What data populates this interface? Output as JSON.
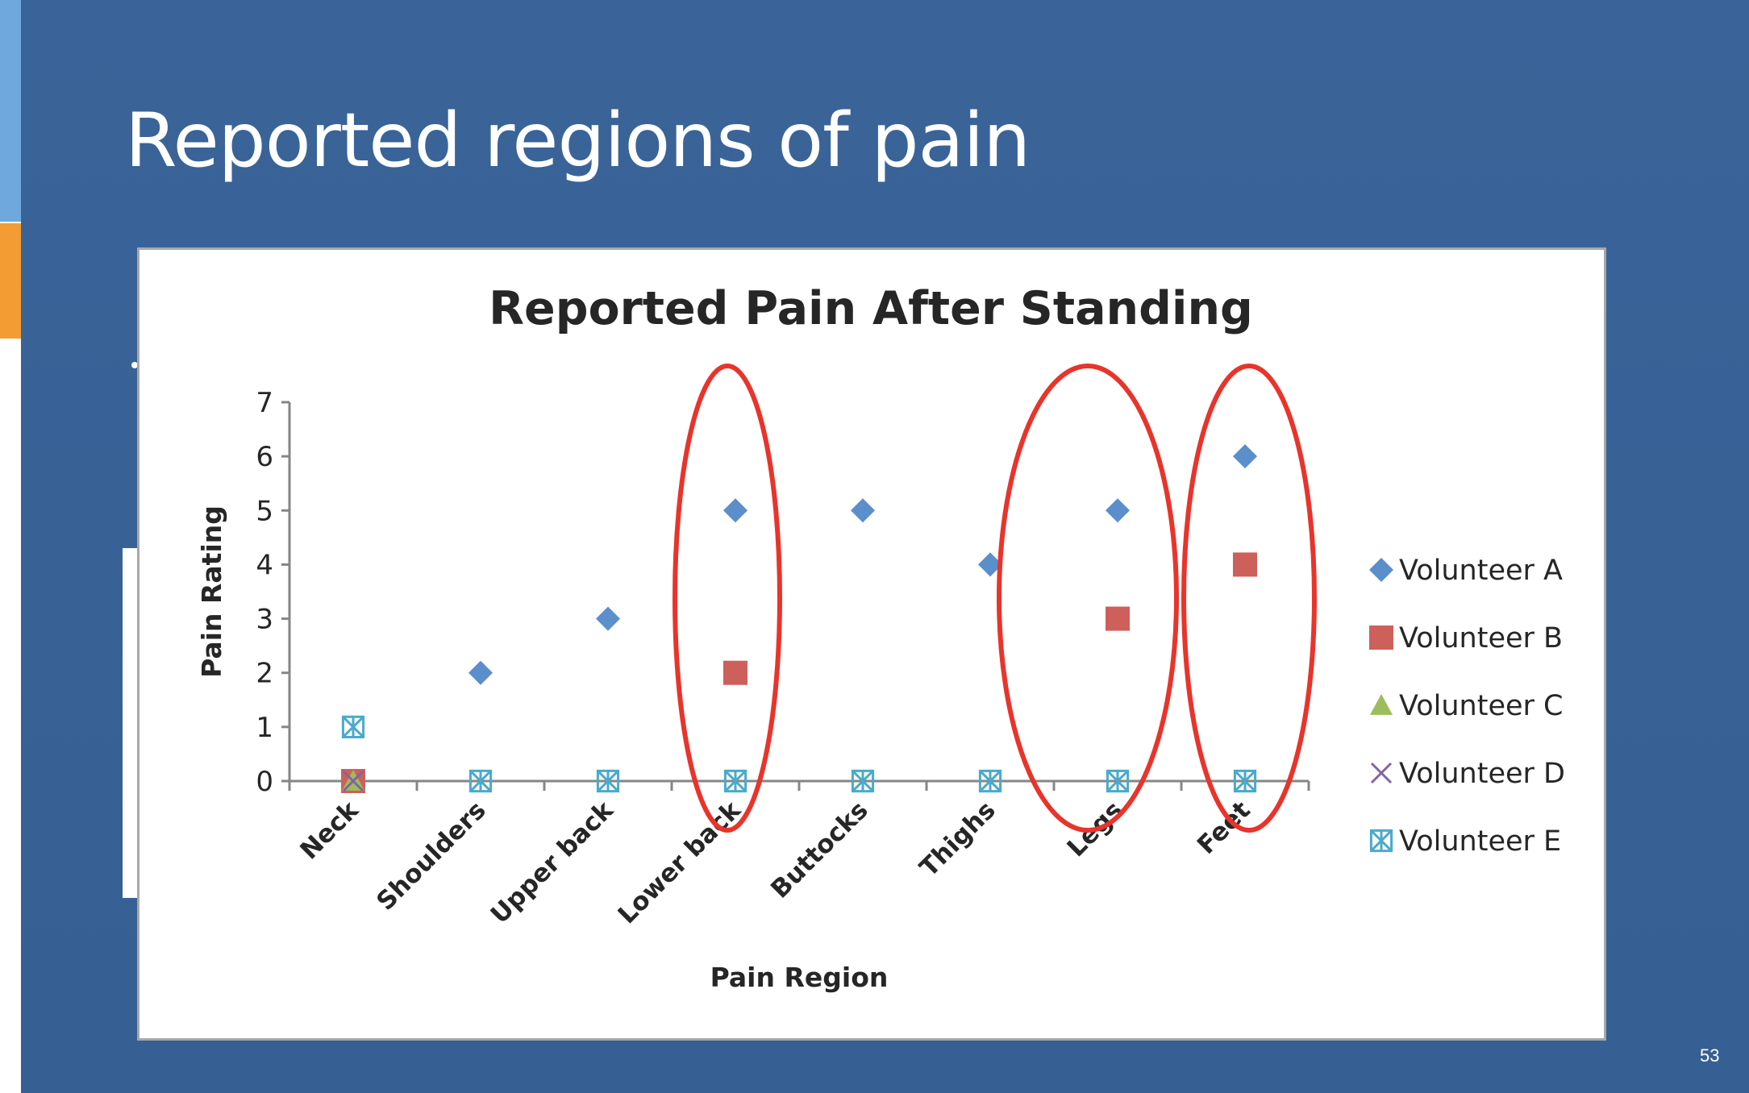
{
  "slide": {
    "title": "Reported regions of pain",
    "page_number": "53"
  },
  "colors": {
    "background": "#3a6499",
    "accent_blue": "#6fa8dc",
    "accent_orange": "#f39c33",
    "highlight_ellipse": "#e8342b"
  },
  "chart_data": {
    "type": "scatter",
    "title": "Reported Pain After Standing",
    "xlabel": "Pain Region",
    "ylabel": "Pain Rating",
    "ylim": [
      0,
      7
    ],
    "yticks": [
      0,
      1,
      2,
      3,
      4,
      5,
      6,
      7
    ],
    "grid": false,
    "legend_position": "right",
    "categories": [
      "Neck",
      "Shoulders",
      "Upper back",
      "Lower back",
      "Buttocks",
      "Thighs",
      "Legs",
      "Feet"
    ],
    "series": [
      {
        "name": "Volunteer A",
        "marker": "diamond",
        "color": "#5b8fcb",
        "values": [
          null,
          2,
          3,
          5,
          5,
          4,
          5,
          6
        ]
      },
      {
        "name": "Volunteer B",
        "marker": "square",
        "color": "#cd605b",
        "values": [
          0,
          null,
          null,
          2,
          null,
          null,
          3,
          4
        ]
      },
      {
        "name": "Volunteer C",
        "marker": "triangle",
        "color": "#9cbd59",
        "values": [
          0,
          null,
          null,
          null,
          null,
          null,
          null,
          null
        ]
      },
      {
        "name": "Volunteer D",
        "marker": "x",
        "color": "#8064a2",
        "values": [
          0,
          null,
          null,
          null,
          null,
          null,
          null,
          null
        ]
      },
      {
        "name": "Volunteer E",
        "marker": "boxed-x",
        "color": "#4aaacc",
        "values": [
          1,
          0,
          0,
          0,
          0,
          0,
          0,
          0
        ]
      }
    ],
    "highlighted_categories": [
      "Lower back",
      "Legs",
      "Feet"
    ]
  }
}
